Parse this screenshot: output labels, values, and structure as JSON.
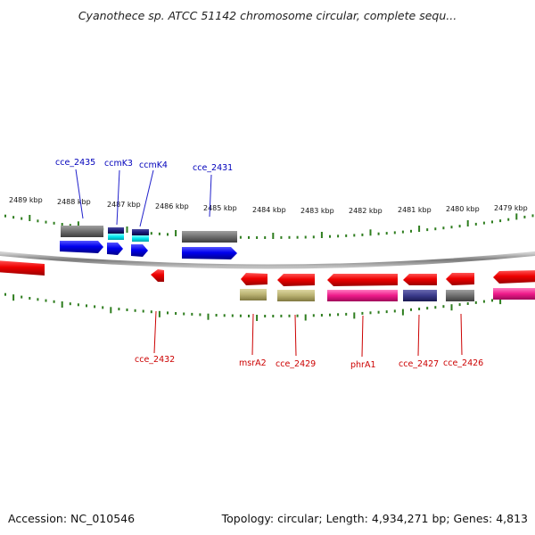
{
  "title": "Cyanothece sp. ATCC 51142 chromosome circular, complete sequ...",
  "footer": {
    "accession": "Accession: NC_010546",
    "summary": "Topology: circular; Length: 4,934,271 bp; Genes: 4,813"
  },
  "scale": {
    "unit": "kbp",
    "major_ticks": [
      "2489 kbp",
      "2488 kbp",
      "2487 kbp",
      "2486 kbp",
      "2485 kbp",
      "2484 kbp",
      "2483 kbp",
      "2482 kbp",
      "2481 kbp",
      "2480 kbp",
      "2479 kbp"
    ]
  },
  "colors": {
    "backbone": "#8a8a8a",
    "tick": "#2e7d1e",
    "gene_red": "#ee0000",
    "gene_blue": "#0000ee",
    "gray_block": "#6e6e6e",
    "cyan_block": "#00e5ee",
    "navy_block": "#1a1a7a",
    "khaki_block": "#b8b070",
    "magenta_block": "#ee1a8a",
    "slate_block": "#3a3a8a",
    "label_top": "#0000bb",
    "label_bottom": "#cc0000"
  },
  "genes_top": [
    {
      "label": "cce_2435"
    },
    {
      "label": "ccmK3"
    },
    {
      "label": "ccmK4"
    },
    {
      "label": "cce_2431"
    }
  ],
  "genes_bottom": [
    {
      "label": "cce_2432"
    },
    {
      "label": "msrA2"
    },
    {
      "label": "cce_2429"
    },
    {
      "label": "phrA1"
    },
    {
      "label": "cce_2427"
    },
    {
      "label": "cce_2426"
    }
  ]
}
